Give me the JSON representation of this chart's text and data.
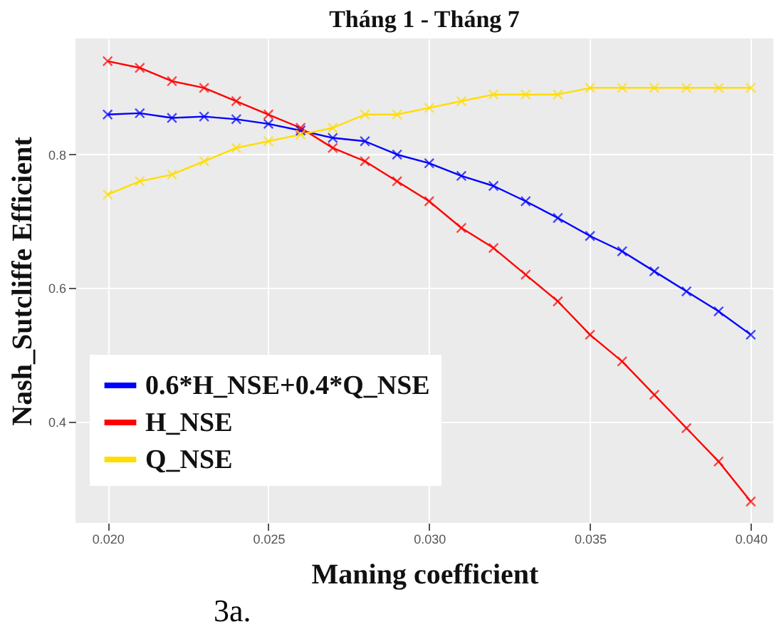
{
  "chart_data": {
    "type": "line",
    "title": "Tháng 1 - Tháng 7",
    "xlabel": "Maning  coefficient",
    "ylabel": "Nash_Sutcliffe Efficient",
    "x": [
      0.02,
      0.021,
      0.022,
      0.023,
      0.024,
      0.025,
      0.026,
      0.027,
      0.028,
      0.029,
      0.03,
      0.031,
      0.032,
      0.033,
      0.034,
      0.035,
      0.036,
      0.037,
      0.038,
      0.039,
      0.04
    ],
    "series": [
      {
        "name": "0.6*H_NSE+0.4*Q_NSE",
        "color": "#0000ff",
        "values": [
          0.86,
          0.862,
          0.855,
          0.857,
          0.853,
          0.846,
          0.836,
          0.825,
          0.82,
          0.8,
          0.787,
          0.768,
          0.753,
          0.73,
          0.705,
          0.678,
          0.655,
          0.625,
          0.595,
          0.565,
          0.53
        ]
      },
      {
        "name": "H_NSE",
        "color": "#ff0000",
        "values": [
          0.94,
          0.93,
          0.91,
          0.9,
          0.88,
          0.86,
          0.84,
          0.81,
          0.79,
          0.76,
          0.73,
          0.69,
          0.66,
          0.62,
          0.58,
          0.53,
          0.49,
          0.44,
          0.39,
          0.34,
          0.28
        ]
      },
      {
        "name": "Q_NSE",
        "color": "#ffdd00",
        "values": [
          0.74,
          0.76,
          0.77,
          0.79,
          0.81,
          0.82,
          0.83,
          0.84,
          0.86,
          0.86,
          0.87,
          0.88,
          0.89,
          0.89,
          0.89,
          0.9,
          0.9,
          0.9,
          0.9,
          0.9,
          0.9
        ]
      }
    ],
    "xlim": [
      0.019,
      0.0407
    ],
    "ylim": [
      0.248,
      0.974
    ],
    "xticks": [
      {
        "value": 0.02,
        "label": "0.020"
      },
      {
        "value": 0.025,
        "label": "0.025"
      },
      {
        "value": 0.03,
        "label": "0.030"
      },
      {
        "value": 0.035,
        "label": "0.035"
      },
      {
        "value": 0.04,
        "label": "0.040"
      }
    ],
    "yticks": [
      0.4,
      0.6,
      0.8
    ],
    "grid": true,
    "legend": "bottom left",
    "marker": "cross",
    "line_style": "solid",
    "annotations": [
      "3a."
    ]
  }
}
